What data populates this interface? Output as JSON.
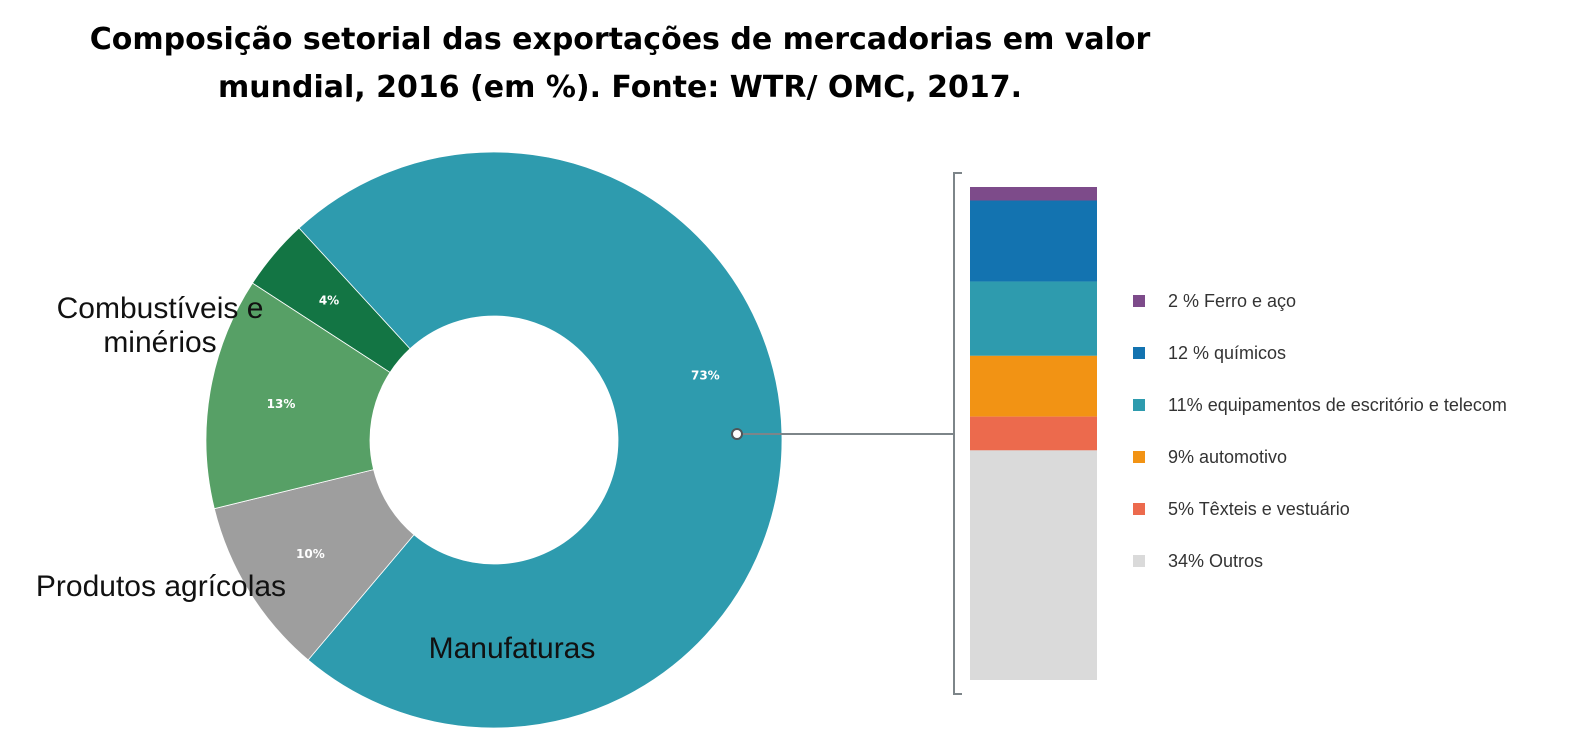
{
  "chart_data": {
    "type": "pie",
    "title_lines": [
      "Composição setorial das exportações de mercadorias em valor",
      "mundial, 2016 (em %). Fonte: WTR/ OMC, 2017."
    ],
    "slices": [
      {
        "label": "",
        "value": 4,
        "value_label": "4%",
        "color": "#137544"
      },
      {
        "label": "Manufaturas",
        "value": 73,
        "value_label": "73%",
        "color": "#2e9bae"
      },
      {
        "label": "Produtos agrícolas",
        "value": 10,
        "value_label": "10%",
        "color": "#9e9e9e"
      },
      {
        "label_lines": [
          "Combustíveis e",
          "minérios"
        ],
        "value": 13,
        "value_label": "13%",
        "color": "#57a066"
      }
    ],
    "breakdown_of": "Manufaturas",
    "breakdown": [
      {
        "label": "2 % Ferro e aço",
        "value": 2,
        "color": "#7d4b8a"
      },
      {
        "label": "12 % químicos",
        "value": 12,
        "color": "#1373b0"
      },
      {
        "label": "11% equipamentos  de escritório e telecom",
        "value": 11,
        "color": "#2e9bae"
      },
      {
        "label": " 9%  automotivo",
        "value": 9,
        "color": "#f29314"
      },
      {
        "label": "5%  Têxteis e vestuário",
        "value": 5,
        "color": "#ec6a4d"
      },
      {
        "label": " 34% Outros",
        "value": 34,
        "color": "#dadada"
      }
    ]
  }
}
